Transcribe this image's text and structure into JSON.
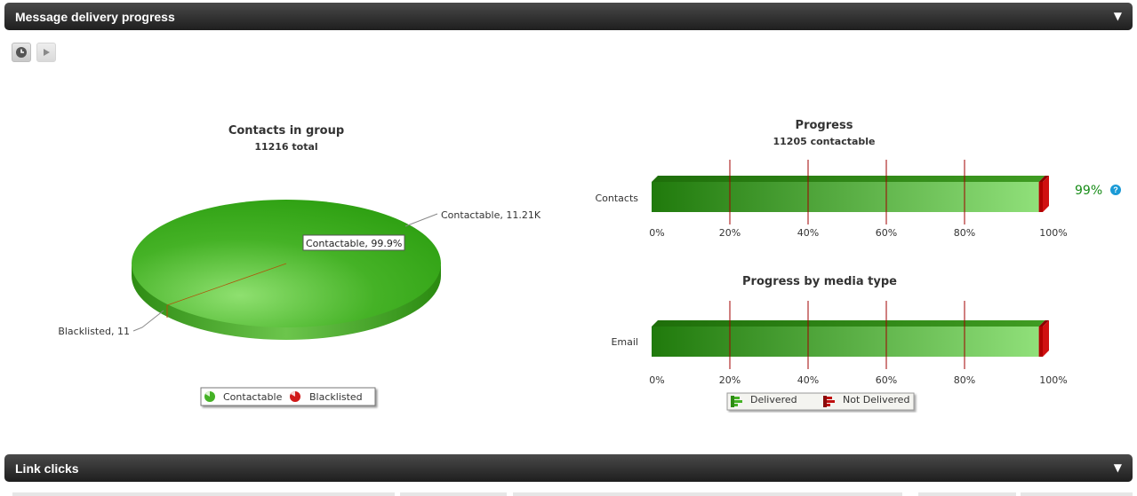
{
  "panels": {
    "delivery": {
      "title": "Message delivery progress",
      "toggle": "▼"
    },
    "links": {
      "title": "Link clicks",
      "toggle": "▼"
    }
  },
  "toolbar": {
    "clock_icon": "clock-icon",
    "play_icon": "play-icon"
  },
  "pie": {
    "title": "Contacts in group",
    "subtitle": "11216 total",
    "label_contactable": "Contactable, 11.21K",
    "label_blacklisted": "Blacklisted, 11",
    "tooltip": "Contactable, 99.9%",
    "legend": [
      "Contactable",
      "Blacklisted"
    ],
    "colors": {
      "contactable": "#3aa81a",
      "blacklisted": "#c01010"
    }
  },
  "progress": {
    "title": "Progress",
    "subtitle": "11205 contactable",
    "row_label": "Contacts",
    "percent_text": "99%",
    "help": "?"
  },
  "media": {
    "title": "Progress by media type",
    "row_label": "Email",
    "legend": [
      "Delivered",
      "Not Delivered"
    ]
  },
  "axis_ticks": [
    "0%",
    "20%",
    "40%",
    "60%",
    "80%",
    "100%"
  ],
  "chart_data": [
    {
      "type": "pie",
      "title": "Contacts in group",
      "subtitle": "11216 total",
      "categories": [
        "Contactable",
        "Blacklisted"
      ],
      "values": [
        11205,
        11
      ],
      "legend": "bottom"
    },
    {
      "type": "bar",
      "title": "Progress",
      "subtitle": "11205 contactable",
      "categories": [
        "Contacts"
      ],
      "series": [
        {
          "name": "Delivered",
          "values": [
            99
          ]
        },
        {
          "name": "Not Delivered",
          "values": [
            1
          ]
        }
      ],
      "xlim": [
        0,
        100
      ]
    },
    {
      "type": "bar",
      "title": "Progress by media type",
      "categories": [
        "Email"
      ],
      "series": [
        {
          "name": "Delivered",
          "values": [
            99
          ]
        },
        {
          "name": "Not Delivered",
          "values": [
            1
          ]
        }
      ],
      "xlim": [
        0,
        100
      ],
      "legend": "bottom"
    }
  ]
}
